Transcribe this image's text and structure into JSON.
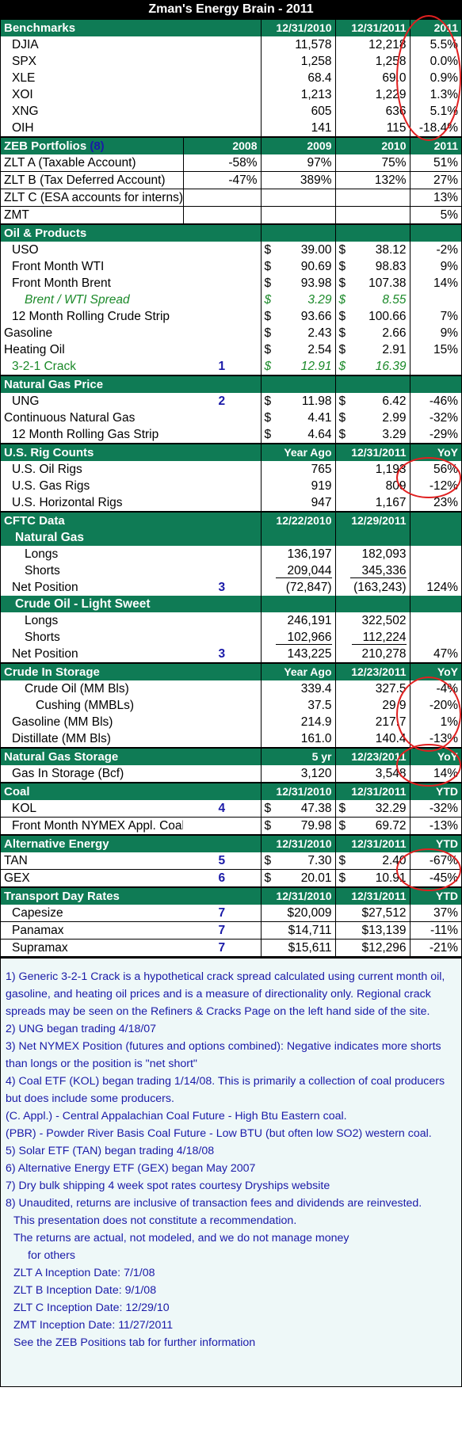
{
  "title": "Zman's Energy Brain - 2011",
  "benchmarks": {
    "header": [
      "Benchmarks",
      "12/31/2010",
      "12/31/2011",
      "2011"
    ],
    "rows": [
      {
        "name": "DJIA",
        "a": "11,578",
        "b": "12,218",
        "c": "5.5%"
      },
      {
        "name": "SPX",
        "a": "1,258",
        "b": "1,258",
        "c": "0.0%"
      },
      {
        "name": "XLE",
        "a": "68.4",
        "b": "69.0",
        "c": "0.9%"
      },
      {
        "name": "XOI",
        "a": "1,213",
        "b": "1,229",
        "c": "1.3%"
      },
      {
        "name": "XNG",
        "a": "605",
        "b": "636",
        "c": "5.1%"
      },
      {
        "name": "OIH",
        "a": "141",
        "b": "115",
        "c": "-18.4%"
      }
    ]
  },
  "portfolios": {
    "header": [
      "ZEB Portfolios",
      "(8)",
      "2008",
      "2009",
      "2010",
      "2011"
    ],
    "rows": [
      {
        "name": "ZLT A (Taxable Account)",
        "a": "-58%",
        "b": "97%",
        "c": "75%",
        "d": "51%"
      },
      {
        "name": "ZLT B (Tax Deferred Account)",
        "a": "-47%",
        "b": "389%",
        "c": "132%",
        "d": "27%"
      },
      {
        "name": "ZLT C (ESA accounts for interns)",
        "a": "",
        "b": "",
        "c": "",
        "d": "13%"
      },
      {
        "name": "ZMT",
        "a": "",
        "b": "",
        "c": "",
        "d": "5%"
      }
    ]
  },
  "oil": {
    "header": "Oil & Products",
    "rows": [
      {
        "name": "USO",
        "note": "",
        "a": "39.00",
        "b": "38.12",
        "c": "-2%",
        "style": "ind1"
      },
      {
        "name": "Front Month WTI",
        "note": "",
        "a": "90.69",
        "b": "98.83",
        "c": "9%",
        "style": "ind1"
      },
      {
        "name": "Front Month Brent",
        "note": "",
        "a": "93.98",
        "b": "107.38",
        "c": "14%",
        "style": "ind1"
      },
      {
        "name": "Brent / WTI Spread",
        "note": "",
        "a": "3.29",
        "b": "8.55",
        "c": "",
        "style": "green"
      },
      {
        "name": "12 Month Rolling Crude Strip",
        "note": "",
        "a": "93.66",
        "b": "100.66",
        "c": "7%",
        "style": "ind1"
      },
      {
        "name": "Gasoline",
        "note": "",
        "a": "2.43",
        "b": "2.66",
        "c": "9%",
        "style": "ind0"
      },
      {
        "name": "Heating Oil",
        "note": "",
        "a": "2.54",
        "b": "2.91",
        "c": "15%",
        "style": "ind0"
      },
      {
        "name": "3-2-1 Crack",
        "note": "1",
        "a": "12.91",
        "b": "16.39",
        "c": "",
        "style": "greenu"
      }
    ]
  },
  "natgas": {
    "header": "Natural Gas Price",
    "rows": [
      {
        "name": "UNG",
        "note": "2",
        "a": "11.98",
        "b": "6.42",
        "c": "-46%",
        "style": "ind1"
      },
      {
        "name": "Continuous Natural Gas",
        "note": "",
        "a": "4.41",
        "b": "2.99",
        "c": "-32%",
        "style": "ind0"
      },
      {
        "name": "12 Month Rolling Gas Strip",
        "note": "",
        "a": "4.64",
        "b": "3.29",
        "c": "-29%",
        "style": "ind1"
      }
    ]
  },
  "rigs": {
    "header": [
      "U.S. Rig Counts",
      "Year Ago",
      "12/31/2011",
      "YoY"
    ],
    "rows": [
      {
        "name": "U.S. Oil Rigs",
        "a": "765",
        "b": "1,193",
        "c": "56%"
      },
      {
        "name": "U.S. Gas Rigs",
        "a": "919",
        "b": "809",
        "c": "-12%"
      },
      {
        "name": "U.S. Horizontal Rigs",
        "a": "947",
        "b": "1,167",
        "c": "23%"
      }
    ]
  },
  "cftc": {
    "header": [
      "CFTC Data",
      "12/22/2010",
      "12/29/2011"
    ],
    "natgas_label": "Natural Gas",
    "natgas": [
      {
        "name": "Longs",
        "a": "136,197",
        "b": "182,093"
      },
      {
        "name": "Shorts",
        "a": "209,044",
        "b": "345,336"
      }
    ],
    "natgas_net": {
      "name": "Net Position",
      "note": "3",
      "a": "(72,847)",
      "b": "(163,243)",
      "c": "124%"
    },
    "crude_label": "Crude Oil - Light Sweet",
    "crude": [
      {
        "name": "Longs",
        "a": "246,191",
        "b": "322,502"
      },
      {
        "name": "Shorts",
        "a": "102,966",
        "b": "112,224"
      }
    ],
    "crude_net": {
      "name": "Net Position",
      "note": "3",
      "a": "143,225",
      "b": "210,278",
      "c": "47%"
    }
  },
  "storage": {
    "header": [
      "Crude In Storage",
      "Year Ago",
      "12/23/2011",
      "YoY"
    ],
    "rows": [
      {
        "name": "Crude Oil (MM Bls)",
        "a": "339.4",
        "b": "327.5",
        "c": "-4%",
        "style": "ind2"
      },
      {
        "name": "Cushing (MMBLs)",
        "a": "37.5",
        "b": "29.9",
        "c": "-20%",
        "style": "ind3"
      },
      {
        "name": "Gasoline (MM Bls)",
        "a": "214.9",
        "b": "217.7",
        "c": "1%",
        "style": "ind1"
      },
      {
        "name": "Distillate (MM Bls)",
        "a": "161.0",
        "b": "140.4",
        "c": "-13%",
        "style": "ind1"
      }
    ]
  },
  "gasstorage": {
    "header": [
      "Natural Gas Storage",
      "5 yr",
      "12/23/2011",
      "YoY"
    ],
    "rows": [
      {
        "name": "Gas In Storage (Bcf)",
        "a": "3,120",
        "b": "3,548",
        "c": "14%"
      }
    ]
  },
  "coal": {
    "header": [
      "Coal",
      "12/31/2010",
      "12/31/2011",
      "YTD"
    ],
    "rows": [
      {
        "name": "KOL",
        "note": "4",
        "a": "47.38",
        "b": "32.29",
        "c": "-32%"
      },
      {
        "name": "Front Month NYMEX Appl. Coal",
        "note": "",
        "a": "79.98",
        "b": "69.72",
        "c": "-13%"
      }
    ]
  },
  "alt": {
    "header": [
      "Alternative Energy",
      "12/31/2010",
      "12/31/2011",
      "YTD"
    ],
    "rows": [
      {
        "name": "TAN",
        "note": "5",
        "a": "7.30",
        "b": "2.40",
        "c": "-67%"
      },
      {
        "name": "GEX",
        "note": "6",
        "a": "20.01",
        "b": "10.91",
        "c": "-45%"
      }
    ]
  },
  "transport": {
    "header": [
      "Transport Day Rates",
      "12/31/2010",
      "12/31/2011",
      "YTD"
    ],
    "rows": [
      {
        "name": "Capesize",
        "note": "7",
        "a": "$20,009",
        "b": "$27,512",
        "c": "37%"
      },
      {
        "name": "Panamax",
        "note": "7",
        "a": "$14,711",
        "b": "$13,139",
        "c": "-11%"
      },
      {
        "name": "Supramax",
        "note": "7",
        "a": "$15,611",
        "b": "$12,296",
        "c": "-21%"
      }
    ]
  },
  "currency_symbol": "$",
  "notes": [
    {
      "text": "1) Generic 3-2-1 Crack is a hypothetical crack spread calculated using current month oil, gasoline, and heating oil prices and is a measure of directionality only. Regional crack spreads may be seen on the Refiners & Cracks Page on the left hand side of the site.",
      "indent": 0
    },
    {
      "text": "2) UNG began trading 4/18/07",
      "indent": 0
    },
    {
      "text": "3) Net NYMEX Position (futures and options combined): Negative indicates more shorts than longs or the position is \"net short\"",
      "indent": 0
    },
    {
      "text": "4) Coal ETF (KOL) began trading 1/14/08. This is primarily a collection of coal producers but does include some producers.",
      "indent": 0
    },
    {
      "text": "(C. Appl.) - Central Appalachian Coal Future - High Btu Eastern coal.",
      "indent": 0
    },
    {
      "text": "(PBR) - Powder River Basis Coal Future - Low BTU (but often low SO2) western coal.",
      "indent": 0
    },
    {
      "text": "5) Solar ETF (TAN) began trading 4/18/08",
      "indent": 0
    },
    {
      "text": "6) Alternative Energy ETF (GEX) began May 2007",
      "indent": 0
    },
    {
      "text": "7) Dry bulk shipping 4 week spot rates courtesy Dryships website",
      "indent": 0
    },
    {
      "text": "8) Unaudited, returns are inclusive of transaction fees and dividends are reinvested.",
      "indent": 0
    },
    {
      "text": "This presentation does not constitute a recommendation.",
      "indent": 1
    },
    {
      "text": "The returns are actual, not modeled, and we do not manage money",
      "indent": 1
    },
    {
      "text": "for others",
      "indent": 2
    },
    {
      "text": "ZLT A Inception Date: 7/1/08",
      "indent": 1
    },
    {
      "text": "ZLT B Inception Date: 9/1/08",
      "indent": 1
    },
    {
      "text": "ZLT C Inception Date: 12/29/10",
      "indent": 1
    },
    {
      "text": "ZMT Inception Date: 11/27/2011",
      "indent": 1
    },
    {
      "text": "See the ZEB Positions tab for further information",
      "indent": 1
    }
  ],
  "colors": {
    "header_green": "#0f7b55",
    "note_blue": "#1a1aa8",
    "highlight_circle": "#e02020",
    "spread_green": "#1c8a2a"
  }
}
